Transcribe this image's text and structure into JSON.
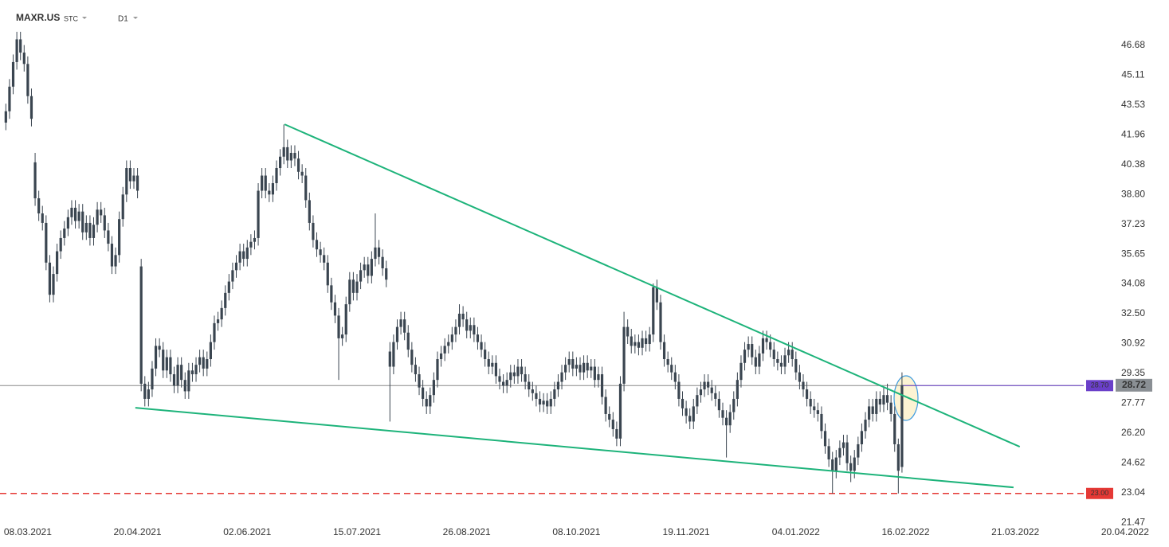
{
  "chart_data": {
    "type": "candlestick",
    "symbol": "MAXR.US",
    "market": "STC",
    "interval": "D1",
    "ohlc": [
      [
        42.6,
        43.6,
        42.2,
        43.2
      ],
      [
        43.2,
        44.9,
        42.8,
        44.5
      ],
      [
        44.5,
        46.2,
        44.1,
        45.8
      ],
      [
        45.8,
        47.4,
        45.4,
        47.0
      ],
      [
        47.0,
        47.4,
        45.9,
        46.3
      ],
      [
        46.3,
        46.7,
        45.3,
        45.7
      ],
      [
        45.7,
        46.1,
        43.6,
        44.0
      ],
      [
        44.0,
        44.4,
        42.4,
        42.8
      ],
      [
        40.5,
        41.0,
        38.2,
        38.6
      ],
      [
        38.6,
        39.0,
        37.4,
        37.8
      ],
      [
        37.8,
        38.2,
        36.9,
        37.3
      ],
      [
        37.3,
        37.7,
        34.8,
        35.2
      ],
      [
        35.2,
        35.6,
        33.1,
        33.5
      ],
      [
        33.5,
        35.0,
        33.1,
        34.6
      ],
      [
        34.6,
        36.2,
        34.2,
        35.8
      ],
      [
        35.8,
        36.9,
        35.4,
        36.5
      ],
      [
        36.5,
        37.4,
        36.1,
        37.0
      ],
      [
        37.0,
        38.0,
        36.6,
        37.6
      ],
      [
        37.6,
        38.5,
        37.2,
        38.1
      ],
      [
        38.1,
        38.5,
        37.0,
        37.4
      ],
      [
        37.4,
        38.3,
        37.0,
        37.9
      ],
      [
        37.9,
        38.3,
        36.4,
        36.8
      ],
      [
        36.8,
        37.7,
        36.4,
        37.3
      ],
      [
        37.3,
        37.7,
        36.1,
        36.5
      ],
      [
        36.5,
        37.6,
        36.1,
        37.2
      ],
      [
        37.2,
        38.4,
        36.8,
        38.0
      ],
      [
        38.0,
        38.4,
        37.3,
        37.7
      ],
      [
        37.7,
        38.1,
        36.5,
        36.9
      ],
      [
        36.9,
        37.3,
        35.8,
        36.2
      ],
      [
        36.2,
        36.6,
        34.6,
        35.0
      ],
      [
        35.0,
        36.0,
        34.6,
        35.6
      ],
      [
        35.6,
        37.9,
        35.2,
        37.5
      ],
      [
        37.5,
        39.2,
        37.1,
        38.8
      ],
      [
        38.8,
        40.6,
        38.4,
        40.2
      ],
      [
        40.2,
        40.6,
        39.1,
        39.5
      ],
      [
        39.5,
        40.2,
        39.1,
        39.8
      ],
      [
        39.8,
        40.2,
        38.6,
        39.0
      ],
      [
        35.0,
        35.4,
        28.4,
        28.8
      ],
      [
        28.8,
        29.2,
        27.6,
        28.0
      ],
      [
        28.0,
        28.9,
        27.6,
        28.5
      ],
      [
        28.5,
        30.0,
        28.1,
        29.6
      ],
      [
        29.6,
        31.2,
        29.2,
        30.8
      ],
      [
        30.8,
        31.2,
        30.2,
        30.6
      ],
      [
        30.6,
        31.0,
        29.1,
        29.5
      ],
      [
        29.5,
        30.6,
        29.1,
        30.2
      ],
      [
        30.2,
        30.6,
        28.9,
        29.3
      ],
      [
        29.3,
        29.7,
        28.3,
        28.7
      ],
      [
        28.7,
        30.2,
        28.3,
        29.8
      ],
      [
        29.8,
        30.2,
        28.6,
        29.0
      ],
      [
        29.0,
        29.4,
        28.0,
        28.4
      ],
      [
        28.4,
        29.9,
        28.0,
        29.5
      ],
      [
        29.5,
        29.9,
        28.9,
        29.3
      ],
      [
        29.3,
        30.2,
        28.9,
        29.8
      ],
      [
        29.8,
        30.6,
        29.4,
        30.2
      ],
      [
        30.2,
        30.6,
        29.2,
        29.6
      ],
      [
        29.6,
        30.5,
        29.2,
        30.1
      ],
      [
        30.1,
        31.4,
        29.7,
        31.0
      ],
      [
        31.0,
        32.4,
        30.6,
        32.0
      ],
      [
        32.0,
        32.6,
        31.6,
        32.2
      ],
      [
        32.2,
        33.2,
        31.8,
        32.8
      ],
      [
        32.8,
        34.0,
        32.4,
        33.6
      ],
      [
        33.6,
        34.6,
        33.2,
        34.2
      ],
      [
        34.2,
        35.2,
        33.8,
        34.8
      ],
      [
        34.8,
        35.6,
        34.4,
        35.2
      ],
      [
        35.2,
        36.2,
        34.8,
        35.8
      ],
      [
        35.8,
        36.2,
        35.0,
        35.4
      ],
      [
        35.4,
        36.4,
        35.0,
        36.0
      ],
      [
        36.0,
        36.7,
        35.6,
        36.3
      ],
      [
        36.3,
        36.9,
        35.9,
        36.5
      ],
      [
        36.5,
        39.4,
        36.1,
        39.0
      ],
      [
        39.0,
        40.2,
        38.6,
        39.8
      ],
      [
        39.8,
        40.2,
        38.6,
        39.0
      ],
      [
        39.0,
        39.4,
        38.4,
        38.8
      ],
      [
        38.8,
        39.8,
        38.4,
        39.4
      ],
      [
        39.4,
        40.6,
        39.0,
        40.2
      ],
      [
        40.2,
        41.2,
        39.8,
        40.8
      ],
      [
        40.8,
        42.5,
        40.4,
        41.3
      ],
      [
        41.3,
        41.7,
        40.2,
        40.6
      ],
      [
        40.6,
        41.4,
        40.2,
        41.0
      ],
      [
        41.0,
        41.4,
        40.3,
        40.7
      ],
      [
        40.7,
        41.1,
        39.6,
        40.0
      ],
      [
        40.0,
        40.4,
        39.4,
        39.8
      ],
      [
        39.8,
        40.2,
        38.1,
        38.5
      ],
      [
        38.5,
        38.9,
        36.9,
        37.3
      ],
      [
        37.3,
        37.7,
        36.0,
        36.4
      ],
      [
        36.4,
        36.8,
        35.5,
        35.9
      ],
      [
        35.9,
        36.3,
        35.2,
        35.6
      ],
      [
        35.6,
        36.0,
        34.8,
        35.2
      ],
      [
        35.2,
        35.6,
        33.6,
        34.0
      ],
      [
        34.0,
        34.4,
        32.7,
        33.1
      ],
      [
        33.1,
        33.5,
        32.0,
        32.4
      ],
      [
        32.4,
        32.8,
        29.0,
        31.2
      ],
      [
        31.2,
        31.8,
        30.8,
        31.4
      ],
      [
        31.4,
        33.4,
        31.0,
        33.0
      ],
      [
        33.0,
        34.7,
        32.6,
        34.3
      ],
      [
        34.3,
        34.7,
        33.2,
        33.6
      ],
      [
        33.6,
        34.6,
        33.2,
        34.2
      ],
      [
        34.2,
        35.2,
        33.8,
        34.8
      ],
      [
        34.8,
        35.5,
        34.4,
        35.1
      ],
      [
        35.1,
        35.5,
        34.1,
        34.5
      ],
      [
        34.5,
        35.8,
        34.1,
        35.4
      ],
      [
        35.4,
        37.8,
        35.0,
        36.0
      ],
      [
        36.0,
        36.4,
        35.1,
        35.5
      ],
      [
        35.5,
        35.9,
        34.5,
        34.9
      ],
      [
        34.9,
        35.3,
        33.9,
        34.3
      ],
      [
        30.5,
        31.0,
        26.8,
        29.7
      ],
      [
        29.7,
        31.4,
        29.3,
        31.0
      ],
      [
        31.0,
        32.2,
        30.6,
        31.8
      ],
      [
        31.8,
        32.6,
        31.4,
        32.2
      ],
      [
        32.2,
        32.6,
        31.1,
        31.5
      ],
      [
        31.5,
        31.9,
        30.2,
        30.6
      ],
      [
        30.6,
        31.0,
        29.4,
        29.8
      ],
      [
        29.8,
        30.2,
        28.9,
        29.3
      ],
      [
        29.3,
        29.7,
        28.2,
        28.6
      ],
      [
        28.6,
        29.0,
        27.6,
        28.0
      ],
      [
        28.0,
        28.4,
        27.2,
        27.6
      ],
      [
        27.6,
        28.6,
        27.2,
        28.2
      ],
      [
        28.2,
        29.4,
        27.8,
        29.0
      ],
      [
        29.0,
        30.5,
        28.6,
        30.1
      ],
      [
        30.1,
        30.8,
        29.7,
        30.4
      ],
      [
        30.4,
        31.2,
        30.0,
        30.8
      ],
      [
        30.8,
        31.4,
        30.4,
        31.0
      ],
      [
        31.0,
        31.8,
        30.6,
        31.4
      ],
      [
        31.4,
        32.2,
        31.0,
        31.8
      ],
      [
        31.8,
        33.0,
        31.4,
        32.5
      ],
      [
        32.5,
        32.9,
        31.8,
        32.2
      ],
      [
        32.2,
        32.6,
        31.2,
        31.6
      ],
      [
        31.6,
        32.3,
        31.2,
        31.9
      ],
      [
        31.9,
        32.3,
        31.0,
        31.4
      ],
      [
        31.4,
        31.8,
        30.6,
        31.0
      ],
      [
        31.0,
        31.4,
        30.2,
        30.6
      ],
      [
        30.6,
        31.0,
        29.7,
        30.1
      ],
      [
        30.1,
        30.5,
        29.3,
        29.7
      ],
      [
        29.7,
        30.3,
        29.3,
        29.9
      ],
      [
        29.9,
        30.3,
        28.8,
        29.2
      ],
      [
        29.2,
        29.6,
        28.5,
        28.9
      ],
      [
        28.9,
        29.3,
        28.3,
        28.7
      ],
      [
        28.7,
        29.4,
        28.3,
        29.0
      ],
      [
        29.0,
        29.8,
        28.6,
        29.4
      ],
      [
        29.4,
        29.8,
        28.8,
        29.2
      ],
      [
        29.2,
        30.1,
        28.8,
        29.7
      ],
      [
        29.7,
        30.1,
        28.9,
        29.3
      ],
      [
        29.3,
        29.7,
        28.5,
        28.9
      ],
      [
        28.9,
        29.3,
        28.1,
        28.5
      ],
      [
        28.5,
        28.9,
        27.9,
        28.3
      ],
      [
        28.3,
        28.7,
        27.6,
        28.0
      ],
      [
        28.0,
        28.4,
        27.3,
        27.7
      ],
      [
        27.7,
        28.3,
        27.3,
        27.9
      ],
      [
        27.9,
        28.3,
        27.2,
        27.6
      ],
      [
        27.6,
        28.4,
        27.2,
        28.0
      ],
      [
        28.0,
        28.9,
        27.6,
        28.5
      ],
      [
        28.5,
        29.3,
        28.1,
        28.9
      ],
      [
        28.9,
        29.8,
        28.5,
        29.4
      ],
      [
        29.4,
        30.2,
        29.0,
        29.8
      ],
      [
        29.8,
        30.5,
        29.4,
        30.1
      ],
      [
        30.1,
        30.5,
        29.2,
        29.6
      ],
      [
        29.6,
        30.2,
        29.2,
        29.8
      ],
      [
        29.8,
        30.2,
        29.0,
        29.4
      ],
      [
        29.4,
        30.3,
        29.0,
        29.9
      ],
      [
        29.9,
        30.3,
        29.1,
        29.5
      ],
      [
        29.5,
        30.1,
        29.1,
        29.7
      ],
      [
        29.7,
        30.1,
        28.6,
        29.0
      ],
      [
        29.0,
        29.7,
        28.6,
        29.3
      ],
      [
        29.3,
        29.7,
        27.7,
        28.1
      ],
      [
        28.1,
        28.5,
        26.8,
        27.2
      ],
      [
        27.2,
        27.6,
        26.5,
        26.9
      ],
      [
        26.9,
        27.3,
        26.0,
        26.4
      ],
      [
        26.4,
        26.8,
        25.5,
        25.9
      ],
      [
        25.9,
        29.2,
        25.5,
        28.8
      ],
      [
        28.8,
        32.6,
        28.4,
        31.8
      ],
      [
        31.8,
        32.2,
        30.9,
        31.3
      ],
      [
        31.3,
        31.7,
        30.4,
        30.8
      ],
      [
        30.8,
        31.4,
        30.4,
        31.0
      ],
      [
        31.0,
        31.4,
        30.3,
        30.7
      ],
      [
        30.7,
        31.6,
        30.3,
        31.2
      ],
      [
        31.2,
        31.6,
        30.5,
        30.9
      ],
      [
        30.9,
        31.8,
        30.5,
        31.4
      ],
      [
        31.4,
        34.1,
        31.0,
        33.9
      ],
      [
        33.9,
        34.3,
        32.7,
        33.1
      ],
      [
        33.1,
        33.5,
        30.6,
        31.0
      ],
      [
        31.0,
        31.4,
        29.7,
        30.1
      ],
      [
        30.1,
        30.5,
        29.4,
        29.8
      ],
      [
        29.8,
        30.2,
        29.0,
        29.4
      ],
      [
        29.4,
        29.8,
        28.5,
        28.9
      ],
      [
        28.9,
        29.3,
        27.6,
        28.0
      ],
      [
        28.0,
        28.4,
        27.1,
        27.5
      ],
      [
        27.5,
        27.9,
        26.7,
        27.1
      ],
      [
        27.1,
        27.5,
        26.4,
        26.8
      ],
      [
        26.8,
        28.0,
        26.4,
        27.6
      ],
      [
        27.6,
        28.6,
        27.2,
        28.2
      ],
      [
        28.2,
        28.9,
        27.8,
        28.5
      ],
      [
        28.5,
        29.3,
        28.1,
        28.9
      ],
      [
        28.9,
        29.3,
        28.2,
        28.6
      ],
      [
        28.6,
        29.0,
        27.9,
        28.3
      ],
      [
        28.3,
        28.7,
        27.6,
        28.0
      ],
      [
        28.0,
        28.4,
        27.0,
        27.4
      ],
      [
        27.4,
        27.8,
        26.6,
        27.0
      ],
      [
        27.0,
        27.4,
        24.9,
        26.6
      ],
      [
        26.6,
        27.7,
        26.2,
        27.3
      ],
      [
        27.3,
        28.4,
        26.9,
        28.0
      ],
      [
        28.0,
        29.4,
        27.6,
        29.0
      ],
      [
        29.0,
        30.3,
        28.6,
        29.9
      ],
      [
        29.9,
        31.0,
        29.5,
        30.6
      ],
      [
        30.6,
        31.3,
        30.2,
        30.9
      ],
      [
        30.9,
        31.3,
        29.8,
        30.2
      ],
      [
        30.2,
        30.6,
        29.3,
        29.7
      ],
      [
        29.7,
        30.8,
        29.3,
        30.4
      ],
      [
        30.4,
        31.6,
        30.0,
        31.2
      ],
      [
        31.2,
        31.6,
        30.6,
        31.0
      ],
      [
        31.0,
        31.4,
        30.2,
        30.6
      ],
      [
        30.6,
        31.0,
        29.7,
        30.1
      ],
      [
        30.1,
        30.5,
        29.5,
        29.9
      ],
      [
        29.9,
        30.3,
        29.3,
        29.7
      ],
      [
        29.7,
        30.7,
        29.3,
        30.3
      ],
      [
        30.3,
        31.0,
        29.9,
        30.6
      ],
      [
        30.6,
        31.0,
        29.7,
        30.1
      ],
      [
        30.1,
        30.5,
        29.0,
        29.4
      ],
      [
        29.4,
        29.8,
        28.5,
        28.9
      ],
      [
        28.9,
        29.3,
        28.1,
        28.5
      ],
      [
        28.5,
        28.9,
        27.6,
        28.0
      ],
      [
        28.0,
        28.4,
        27.2,
        27.6
      ],
      [
        27.6,
        28.0,
        27.0,
        27.4
      ],
      [
        27.4,
        27.8,
        26.8,
        27.2
      ],
      [
        27.2,
        27.6,
        25.9,
        26.3
      ],
      [
        26.3,
        26.7,
        25.1,
        25.5
      ],
      [
        25.5,
        25.9,
        24.4,
        24.8
      ],
      [
        24.8,
        25.2,
        23.0,
        24.2
      ],
      [
        24.2,
        25.3,
        23.8,
        24.9
      ],
      [
        24.9,
        25.8,
        24.5,
        25.4
      ],
      [
        25.4,
        26.1,
        25.0,
        25.7
      ],
      [
        25.7,
        26.1,
        24.2,
        24.6
      ],
      [
        24.6,
        25.0,
        23.6,
        24.2
      ],
      [
        24.2,
        25.3,
        23.8,
        24.9
      ],
      [
        24.9,
        26.0,
        24.5,
        25.6
      ],
      [
        25.6,
        26.7,
        25.2,
        26.3
      ],
      [
        26.3,
        27.3,
        25.9,
        26.9
      ],
      [
        26.9,
        28.0,
        26.5,
        27.6
      ],
      [
        27.6,
        28.0,
        26.8,
        27.2
      ],
      [
        27.2,
        28.4,
        26.8,
        28.0
      ],
      [
        28.0,
        28.4,
        27.3,
        27.7
      ],
      [
        27.7,
        28.6,
        27.3,
        28.2
      ],
      [
        28.2,
        28.8,
        27.4,
        27.8
      ],
      [
        27.8,
        28.2,
        26.8,
        27.2
      ],
      [
        27.2,
        27.6,
        25.2,
        25.6
      ],
      [
        25.6,
        25.9,
        23.0,
        24.2
      ],
      [
        24.4,
        29.4,
        24.1,
        28.72
      ]
    ],
    "candle_color": "#3a4550",
    "xlim": [
      -1.6,
      318
    ],
    "xticks": [
      {
        "value": 6,
        "label": "08.03.2021"
      },
      {
        "value": 36,
        "label": "20.04.2021"
      },
      {
        "value": 66,
        "label": "02.06.2021"
      },
      {
        "value": 96,
        "label": "15.07.2021"
      },
      {
        "value": 126,
        "label": "26.08.2021"
      },
      {
        "value": 156,
        "label": "08.10.2021"
      },
      {
        "value": 186,
        "label": "19.11.2021"
      },
      {
        "value": 216,
        "label": "04.01.2022"
      },
      {
        "value": 246,
        "label": "16.02.2022"
      },
      {
        "value": 276,
        "label": "21.03.2022"
      },
      {
        "value": 306,
        "label": "20.04.2022"
      }
    ],
    "ylim": [
      20.17,
      49.08
    ],
    "yticks": [
      21.47,
      23.04,
      24.62,
      {
        "value": 26.2,
        "label": "26.20"
      },
      27.77,
      29.35,
      30.92,
      {
        "value": 32.5,
        "label": "32.50"
      },
      34.08,
      35.65,
      37.23,
      {
        "value": 38.8,
        "label": "38.80"
      },
      40.38,
      41.96,
      43.53,
      45.11,
      46.68
    ],
    "trendlines": [
      {
        "x": [
          76.2,
          277.2
        ],
        "y": [
          42.51,
          25.47
        ],
        "color": "#1db37a"
      },
      {
        "x": [
          35.4,
          275.5
        ],
        "y": [
          27.53,
          23.32
        ],
        "color": "#1db37a"
      }
    ],
    "levels": [
      {
        "value": 28.7,
        "label": "28.70",
        "color": "#6a3fc9",
        "dashed": false
      },
      {
        "value": 23.0,
        "label": "23.00",
        "color": "#e53935",
        "dashed": true
      }
    ],
    "last_price": 28.72
  }
}
